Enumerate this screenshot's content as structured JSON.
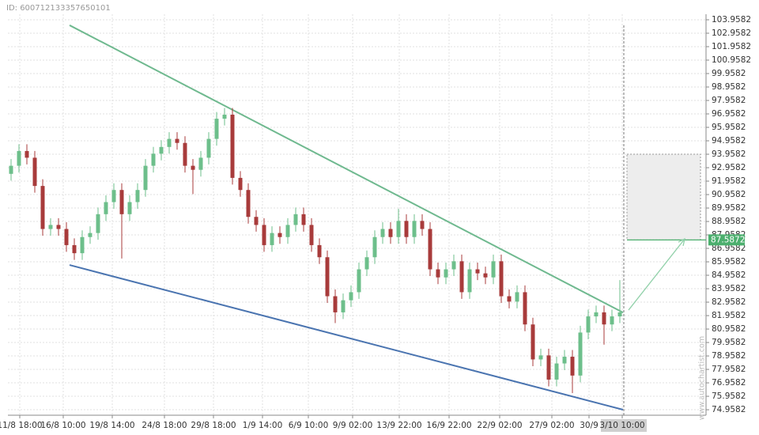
{
  "chart_data": {
    "type": "candlestick",
    "id_label": "ID: 600712133357650101",
    "watermark": "www.autochartist.com",
    "xlim": [
      -0.4,
      87.9
    ],
    "ylim": [
      74.55,
      104.37
    ],
    "yticks": [
      103.9582,
      102.9582,
      101.9582,
      100.9582,
      99.9582,
      98.9582,
      97.9582,
      96.9582,
      95.9582,
      94.9582,
      93.9582,
      92.9582,
      91.9582,
      90.9582,
      89.9582,
      88.9582,
      87.9582,
      86.9582,
      85.9582,
      84.9582,
      83.9582,
      82.9582,
      81.9582,
      80.9582,
      79.9582,
      78.9582,
      77.9582,
      76.9582,
      75.9582,
      74.9582
    ],
    "xticks": [
      {
        "value": 1.1,
        "label": "11/8 18:00"
      },
      {
        "value": 6.6,
        "label": "16/8 10:00"
      },
      {
        "value": 12.8,
        "label": "19/8 14:00"
      },
      {
        "value": 19.4,
        "label": "24/8 18:00"
      },
      {
        "value": 25.6,
        "label": "29/8 18:00"
      },
      {
        "value": 31.8,
        "label": "1/9 14:00"
      },
      {
        "value": 37.6,
        "label": "6/9 10:00"
      },
      {
        "value": 43.2,
        "label": "9/9 02:00"
      },
      {
        "value": 49.1,
        "label": "13/9 22:00"
      },
      {
        "value": 55.4,
        "label": "16/9 22:00"
      },
      {
        "value": 61.8,
        "label": "22/9 02:00"
      },
      {
        "value": 68.4,
        "label": "27/9 02:00"
      },
      {
        "value": 73.1,
        "label": "30/9"
      },
      {
        "value": 77.3,
        "label": "3/10 10:00"
      }
    ],
    "grid": true,
    "up_color": "#6dbf8b",
    "down_color": "#a83b3b",
    "series": [
      {
        "open": [
          92.5,
          93.1,
          94.2,
          93.7,
          91.6,
          88.4,
          88.7,
          88.4,
          87.2,
          86.6,
          87.8,
          88.1,
          89.5,
          90.4,
          91.3,
          89.5,
          90.4,
          91.3,
          93.1,
          94.0,
          94.5,
          95.1,
          94.8,
          93.1,
          92.8,
          93.7,
          95.1,
          96.6,
          96.9,
          92.2,
          91.3,
          89.3,
          88.7,
          87.2,
          88.1,
          87.8,
          88.7,
          89.5,
          88.7,
          87.2,
          86.3,
          83.4,
          82.2,
          83.1,
          83.7,
          85.4,
          86.3,
          87.8,
          88.4,
          87.8,
          89.0,
          87.8,
          89.0,
          88.4,
          85.4,
          84.8,
          85.4,
          86.0,
          83.7,
          85.4,
          85.1,
          84.8,
          86.0,
          83.4,
          83.0,
          83.7,
          81.3,
          78.7,
          79.0,
          77.2,
          78.4,
          78.9,
          77.5,
          80.7,
          81.9,
          82.2,
          81.3,
          81.9
        ],
        "high": [
          93.6,
          94.7,
          94.7,
          94.2,
          92.1,
          89.2,
          89.2,
          88.9,
          87.7,
          88.3,
          88.6,
          90.0,
          90.9,
          91.8,
          91.8,
          90.9,
          91.8,
          93.6,
          94.5,
          95.0,
          95.6,
          95.6,
          95.3,
          93.6,
          94.2,
          95.6,
          97.1,
          97.4,
          97.4,
          92.7,
          91.8,
          89.8,
          89.2,
          88.6,
          88.6,
          89.2,
          90.0,
          90.0,
          89.2,
          87.7,
          86.8,
          83.9,
          83.6,
          84.2,
          85.9,
          86.8,
          88.3,
          88.9,
          88.9,
          89.9,
          89.5,
          89.5,
          89.5,
          88.9,
          85.9,
          85.9,
          86.5,
          86.5,
          85.9,
          85.9,
          85.6,
          86.5,
          86.5,
          83.9,
          84.2,
          84.2,
          81.8,
          79.5,
          79.5,
          78.9,
          79.4,
          79.4,
          81.2,
          82.4,
          82.7,
          82.7,
          82.4,
          84.6
        ],
        "low": [
          92.0,
          92.6,
          93.2,
          91.1,
          87.9,
          87.9,
          87.9,
          86.7,
          86.1,
          86.1,
          87.3,
          87.6,
          89.0,
          89.9,
          86.2,
          89.0,
          89.9,
          90.8,
          92.6,
          93.5,
          94.0,
          94.3,
          92.6,
          91.0,
          92.3,
          93.2,
          94.6,
          96.1,
          91.7,
          90.8,
          88.8,
          88.2,
          86.7,
          86.7,
          87.3,
          87.3,
          88.2,
          88.2,
          86.7,
          85.8,
          82.9,
          81.4,
          81.7,
          82.6,
          83.2,
          84.9,
          85.8,
          87.3,
          87.3,
          87.3,
          87.3,
          87.3,
          87.9,
          84.9,
          84.3,
          84.3,
          84.9,
          83.2,
          83.2,
          84.6,
          84.3,
          84.3,
          82.9,
          82.5,
          82.5,
          80.8,
          78.2,
          78.2,
          76.7,
          76.7,
          77.9,
          76.2,
          77.0,
          80.2,
          81.4,
          79.8,
          80.8,
          81.4
        ],
        "close": [
          93.1,
          94.2,
          93.7,
          91.6,
          88.4,
          88.7,
          88.4,
          87.2,
          86.6,
          87.8,
          88.1,
          89.5,
          90.4,
          91.3,
          89.5,
          90.4,
          91.3,
          93.1,
          94.0,
          94.5,
          95.1,
          94.8,
          93.1,
          92.8,
          93.7,
          95.1,
          96.6,
          96.9,
          92.2,
          91.3,
          89.3,
          88.7,
          87.2,
          88.1,
          87.8,
          88.7,
          89.5,
          88.7,
          87.2,
          86.3,
          83.4,
          82.2,
          83.1,
          83.7,
          85.4,
          86.3,
          87.8,
          88.4,
          87.8,
          89.0,
          87.8,
          89.0,
          88.4,
          85.4,
          84.8,
          85.4,
          86.0,
          83.7,
          85.4,
          85.1,
          84.8,
          86.0,
          83.4,
          83.0,
          83.7,
          81.3,
          78.7,
          79.0,
          77.2,
          78.4,
          78.9,
          77.5,
          80.7,
          81.9,
          82.2,
          81.3,
          81.9,
          82.2
        ]
      }
    ],
    "resistance": {
      "color": "#6fb98f",
      "x": [
        7.4,
        77.4
      ],
      "y": [
        103.55,
        82.19
      ]
    },
    "support": {
      "color": "#4a74b0",
      "x": [
        7.4,
        77.4
      ],
      "y": [
        85.72,
        74.96
      ]
    },
    "projection": {
      "color": "#8fd0a8",
      "x": [
        78.1,
        85.2
      ],
      "y": [
        82.37,
        87.66
      ]
    },
    "target_zone": {
      "color": "#4caf6e",
      "x": [
        77.9,
        87.2
      ],
      "y": [
        87.5872,
        93.96
      ]
    },
    "now_x": 77.5
  }
}
